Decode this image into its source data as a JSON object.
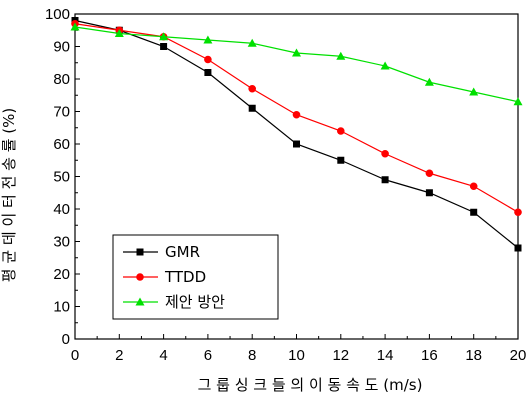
{
  "chart_data": {
    "type": "line",
    "title": "",
    "xlabel": "그 룹 싱 크 들 의  이 동 속 도 (m/s)",
    "ylabel": "평 균  데 이 터  전 송 률 (%)",
    "xlim": [
      0,
      20
    ],
    "ylim": [
      0,
      100
    ],
    "x_ticks": [
      0,
      2,
      4,
      6,
      8,
      10,
      12,
      14,
      16,
      18,
      20
    ],
    "y_ticks": [
      0,
      10,
      20,
      30,
      40,
      50,
      60,
      70,
      80,
      90,
      100
    ],
    "x": [
      0,
      2,
      4,
      6,
      8,
      10,
      12,
      14,
      16,
      18,
      20
    ],
    "grid": false,
    "legend_position": "bottom-left",
    "series": [
      {
        "name": "GMR",
        "color": "#000000",
        "marker": "square",
        "values": [
          98,
          95,
          90,
          82,
          71,
          60,
          55,
          49,
          45,
          39,
          28
        ]
      },
      {
        "name": "TTDD",
        "color": "#ff0000",
        "marker": "circle",
        "values": [
          97,
          95,
          93,
          86,
          77,
          69,
          64,
          57,
          51,
          47,
          39
        ]
      },
      {
        "name": "제안 방안",
        "color": "#00e000",
        "marker": "triangle",
        "values": [
          96,
          94,
          93,
          92,
          91,
          88,
          87,
          84,
          79,
          76,
          73
        ]
      }
    ]
  }
}
